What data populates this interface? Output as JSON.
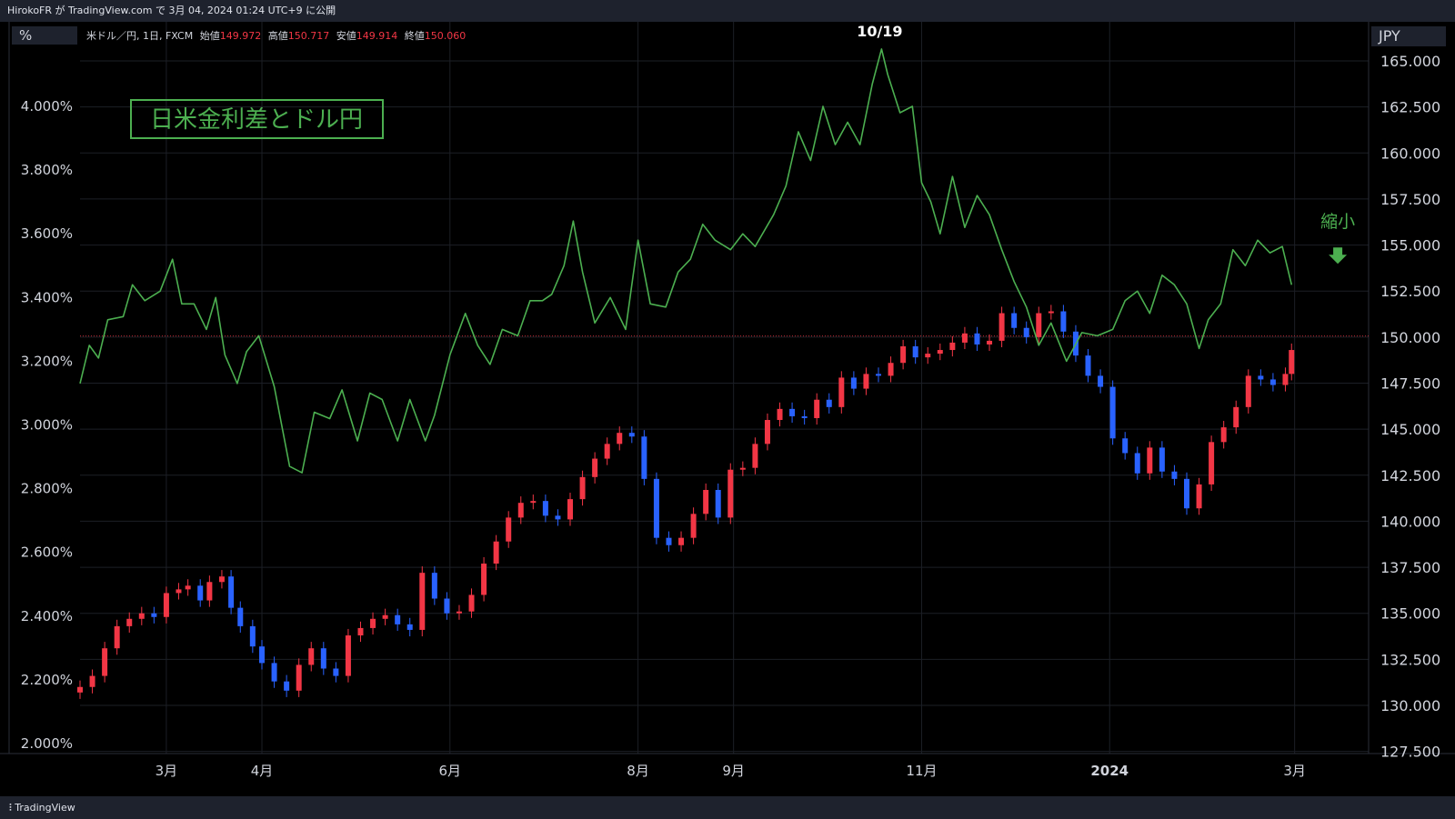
{
  "header": {
    "text": "HirokoFR が TradingView.com で 3月 04, 2024 01:24 UTC+9 に公開"
  },
  "left_axis_unit": "%",
  "right_axis_unit": "JPY",
  "legend": {
    "symbol": "米ドル／円, 1日, FXCM",
    "open_label": "始値",
    "open": "149.972",
    "high_label": "高値",
    "high": "150.717",
    "low_label": "安値",
    "low": "149.914",
    "close_label": "終値",
    "close": "150.060"
  },
  "footer": {
    "brand": "TradingView"
  },
  "colors": {
    "up": "#f23645",
    "down": "#2962ff",
    "spread": "#4caf50",
    "box": "#4caf50"
  },
  "chart_data": {
    "type": "line",
    "title": "日米金利差とドル円",
    "annotations": [
      {
        "text": "10/19",
        "date": "2023-10-19",
        "value": 4.18
      },
      {
        "text": "縮小",
        "date": "2024-03-15",
        "value": 3.62,
        "arrow": "down"
      }
    ],
    "x_ticks": [
      "3月",
      "4月",
      "6月",
      "8月",
      "9月",
      "11月",
      "2024",
      "3月"
    ],
    "x_tick_dates": [
      "2023-03-01",
      "2023-04-01",
      "2023-06-01",
      "2023-08-01",
      "2023-09-01",
      "2023-11-01",
      "2024-01-01",
      "2024-03-01"
    ],
    "x_range": [
      "2023-02-01",
      "2024-03-25"
    ],
    "left_axis": {
      "unit": "%",
      "range": [
        2.0,
        4.3
      ],
      "ticks": [
        "2.000%",
        "2.200%",
        "2.400%",
        "2.600%",
        "2.800%",
        "3.000%",
        "3.200%",
        "3.400%",
        "3.600%",
        "3.800%",
        "4.000%"
      ]
    },
    "right_axis": {
      "unit": "JPY",
      "range": [
        127.5,
        167.5
      ],
      "ticks": [
        "127.500",
        "130.000",
        "132.500",
        "135.000",
        "137.500",
        "140.000",
        "142.500",
        "145.000",
        "147.500",
        "150.000",
        "152.500",
        "155.000",
        "157.500",
        "160.000",
        "162.500",
        "165.000"
      ]
    },
    "reference_price": 150.06,
    "series": [
      {
        "axis": "left",
        "style": "line",
        "points": [
          [
            "2023-02-01",
            3.13
          ],
          [
            "2023-02-04",
            3.25
          ],
          [
            "2023-02-07",
            3.21
          ],
          [
            "2023-02-10",
            3.33
          ],
          [
            "2023-02-15",
            3.34
          ],
          [
            "2023-02-18",
            3.44
          ],
          [
            "2023-02-22",
            3.39
          ],
          [
            "2023-02-27",
            3.42
          ],
          [
            "2023-03-03",
            3.52
          ],
          [
            "2023-03-06",
            3.38
          ],
          [
            "2023-03-10",
            3.38
          ],
          [
            "2023-03-14",
            3.3
          ],
          [
            "2023-03-17",
            3.4
          ],
          [
            "2023-03-20",
            3.22
          ],
          [
            "2023-03-24",
            3.13
          ],
          [
            "2023-03-27",
            3.23
          ],
          [
            "2023-03-31",
            3.28
          ],
          [
            "2023-04-05",
            3.12
          ],
          [
            "2023-04-10",
            2.87
          ],
          [
            "2023-04-14",
            2.85
          ],
          [
            "2023-04-18",
            3.04
          ],
          [
            "2023-04-23",
            3.02
          ],
          [
            "2023-04-27",
            3.11
          ],
          [
            "2023-05-02",
            2.95
          ],
          [
            "2023-05-06",
            3.1
          ],
          [
            "2023-05-10",
            3.08
          ],
          [
            "2023-05-15",
            2.95
          ],
          [
            "2023-05-19",
            3.08
          ],
          [
            "2023-05-24",
            2.95
          ],
          [
            "2023-05-27",
            3.03
          ],
          [
            "2023-06-01",
            3.22
          ],
          [
            "2023-06-06",
            3.35
          ],
          [
            "2023-06-10",
            3.25
          ],
          [
            "2023-06-14",
            3.19
          ],
          [
            "2023-06-18",
            3.3
          ],
          [
            "2023-06-23",
            3.28
          ],
          [
            "2023-06-27",
            3.39
          ],
          [
            "2023-07-01",
            3.39
          ],
          [
            "2023-07-04",
            3.41
          ],
          [
            "2023-07-08",
            3.5
          ],
          [
            "2023-07-11",
            3.64
          ],
          [
            "2023-07-14",
            3.48
          ],
          [
            "2023-07-18",
            3.32
          ],
          [
            "2023-07-23",
            3.4
          ],
          [
            "2023-07-28",
            3.3
          ],
          [
            "2023-08-01",
            3.58
          ],
          [
            "2023-08-05",
            3.38
          ],
          [
            "2023-08-10",
            3.37
          ],
          [
            "2023-08-14",
            3.48
          ],
          [
            "2023-08-18",
            3.52
          ],
          [
            "2023-08-22",
            3.63
          ],
          [
            "2023-08-26",
            3.58
          ],
          [
            "2023-08-31",
            3.55
          ],
          [
            "2023-09-04",
            3.6
          ],
          [
            "2023-09-08",
            3.56
          ],
          [
            "2023-09-14",
            3.66
          ],
          [
            "2023-09-18",
            3.75
          ],
          [
            "2023-09-22",
            3.92
          ],
          [
            "2023-09-26",
            3.83
          ],
          [
            "2023-09-30",
            4.0
          ],
          [
            "2023-10-04",
            3.88
          ],
          [
            "2023-10-08",
            3.95
          ],
          [
            "2023-10-12",
            3.88
          ],
          [
            "2023-10-16",
            4.07
          ],
          [
            "2023-10-19",
            4.18
          ],
          [
            "2023-10-21",
            4.1
          ],
          [
            "2023-10-25",
            3.98
          ],
          [
            "2023-10-29",
            4.0
          ],
          [
            "2023-11-01",
            3.76
          ],
          [
            "2023-11-04",
            3.7
          ],
          [
            "2023-11-07",
            3.6
          ],
          [
            "2023-11-11",
            3.78
          ],
          [
            "2023-11-15",
            3.62
          ],
          [
            "2023-11-19",
            3.72
          ],
          [
            "2023-11-23",
            3.66
          ],
          [
            "2023-11-27",
            3.55
          ],
          [
            "2023-12-01",
            3.45
          ],
          [
            "2023-12-05",
            3.37
          ],
          [
            "2023-12-09",
            3.25
          ],
          [
            "2023-12-13",
            3.32
          ],
          [
            "2023-12-18",
            3.2
          ],
          [
            "2023-12-23",
            3.29
          ],
          [
            "2023-12-28",
            3.28
          ],
          [
            "2024-01-02",
            3.3
          ],
          [
            "2024-01-06",
            3.39
          ],
          [
            "2024-01-10",
            3.42
          ],
          [
            "2024-01-14",
            3.35
          ],
          [
            "2024-01-18",
            3.47
          ],
          [
            "2024-01-22",
            3.44
          ],
          [
            "2024-01-26",
            3.38
          ],
          [
            "2024-01-30",
            3.24
          ],
          [
            "2024-02-02",
            3.33
          ],
          [
            "2024-02-06",
            3.38
          ],
          [
            "2024-02-10",
            3.55
          ],
          [
            "2024-02-14",
            3.5
          ],
          [
            "2024-02-18",
            3.58
          ],
          [
            "2024-02-22",
            3.54
          ],
          [
            "2024-02-26",
            3.56
          ],
          [
            "2024-02-29",
            3.44
          ]
        ]
      },
      {
        "axis": "right",
        "style": "candles",
        "points": [
          [
            "2023-02-01",
            131.0
          ],
          [
            "2023-02-05",
            131.6
          ],
          [
            "2023-02-09",
            133.1
          ],
          [
            "2023-02-13",
            134.3
          ],
          [
            "2023-02-17",
            134.7
          ],
          [
            "2023-02-21",
            135.0
          ],
          [
            "2023-02-25",
            134.8
          ],
          [
            "2023-03-01",
            136.1
          ],
          [
            "2023-03-05",
            136.3
          ],
          [
            "2023-03-08",
            136.5
          ],
          [
            "2023-03-12",
            135.7
          ],
          [
            "2023-03-15",
            136.7
          ],
          [
            "2023-03-19",
            137.0
          ],
          [
            "2023-03-22",
            135.3
          ],
          [
            "2023-03-25",
            134.3
          ],
          [
            "2023-03-29",
            133.2
          ],
          [
            "2023-04-01",
            132.3
          ],
          [
            "2023-04-05",
            131.3
          ],
          [
            "2023-04-09",
            130.8
          ],
          [
            "2023-04-13",
            132.2
          ],
          [
            "2023-04-17",
            133.1
          ],
          [
            "2023-04-21",
            132.0
          ],
          [
            "2023-04-25",
            131.6
          ],
          [
            "2023-04-29",
            133.8
          ],
          [
            "2023-05-03",
            134.2
          ],
          [
            "2023-05-07",
            134.7
          ],
          [
            "2023-05-11",
            134.9
          ],
          [
            "2023-05-15",
            134.4
          ],
          [
            "2023-05-19",
            134.1
          ],
          [
            "2023-05-23",
            137.2
          ],
          [
            "2023-05-27",
            135.8
          ],
          [
            "2023-05-31",
            135.0
          ],
          [
            "2023-06-04",
            135.1
          ],
          [
            "2023-06-08",
            136.0
          ],
          [
            "2023-06-12",
            137.7
          ],
          [
            "2023-06-16",
            138.9
          ],
          [
            "2023-06-20",
            140.2
          ],
          [
            "2023-06-24",
            141.0
          ],
          [
            "2023-06-28",
            141.1
          ],
          [
            "2023-07-02",
            140.3
          ],
          [
            "2023-07-06",
            140.1
          ],
          [
            "2023-07-10",
            141.2
          ],
          [
            "2023-07-14",
            142.4
          ],
          [
            "2023-07-18",
            143.4
          ],
          [
            "2023-07-22",
            144.2
          ],
          [
            "2023-07-26",
            144.8
          ],
          [
            "2023-07-30",
            144.6
          ],
          [
            "2023-08-03",
            142.3
          ],
          [
            "2023-08-07",
            139.1
          ],
          [
            "2023-08-11",
            138.7
          ],
          [
            "2023-08-15",
            139.1
          ],
          [
            "2023-08-19",
            140.4
          ],
          [
            "2023-08-23",
            141.7
          ],
          [
            "2023-08-27",
            140.2
          ],
          [
            "2023-08-31",
            142.8
          ],
          [
            "2023-09-04",
            142.9
          ],
          [
            "2023-09-08",
            144.2
          ],
          [
            "2023-09-12",
            145.5
          ],
          [
            "2023-09-16",
            146.1
          ],
          [
            "2023-09-20",
            145.7
          ],
          [
            "2023-09-24",
            145.6
          ],
          [
            "2023-09-28",
            146.6
          ],
          [
            "2023-10-02",
            146.2
          ],
          [
            "2023-10-06",
            147.8
          ],
          [
            "2023-10-10",
            147.2
          ],
          [
            "2023-10-14",
            148.0
          ],
          [
            "2023-10-18",
            147.9
          ],
          [
            "2023-10-22",
            148.6
          ],
          [
            "2023-10-26",
            149.5
          ],
          [
            "2023-10-30",
            148.9
          ],
          [
            "2023-11-03",
            149.1
          ],
          [
            "2023-11-07",
            149.3
          ],
          [
            "2023-11-11",
            149.7
          ],
          [
            "2023-11-15",
            150.2
          ],
          [
            "2023-11-19",
            149.6
          ],
          [
            "2023-11-23",
            149.8
          ],
          [
            "2023-11-27",
            151.3
          ],
          [
            "2023-12-01",
            150.5
          ],
          [
            "2023-12-05",
            150.0
          ],
          [
            "2023-12-09",
            151.3
          ],
          [
            "2023-12-13",
            151.4
          ],
          [
            "2023-12-17",
            150.3
          ],
          [
            "2023-12-21",
            149.0
          ],
          [
            "2023-12-25",
            147.9
          ],
          [
            "2023-12-29",
            147.3
          ],
          [
            "2024-01-02",
            144.5
          ],
          [
            "2024-01-06",
            143.7
          ],
          [
            "2024-01-10",
            142.6
          ],
          [
            "2024-01-14",
            144.0
          ],
          [
            "2024-01-18",
            142.7
          ],
          [
            "2024-01-22",
            142.3
          ],
          [
            "2024-01-26",
            140.7
          ],
          [
            "2024-01-30",
            142.0
          ],
          [
            "2024-02-03",
            144.3
          ],
          [
            "2024-02-07",
            145.1
          ],
          [
            "2024-02-11",
            146.2
          ],
          [
            "2024-02-15",
            147.9
          ],
          [
            "2024-02-19",
            147.7
          ],
          [
            "2024-02-23",
            147.4
          ],
          [
            "2024-02-27",
            148.0
          ],
          [
            "2024-02-29",
            149.3
          ]
        ]
      }
    ]
  }
}
